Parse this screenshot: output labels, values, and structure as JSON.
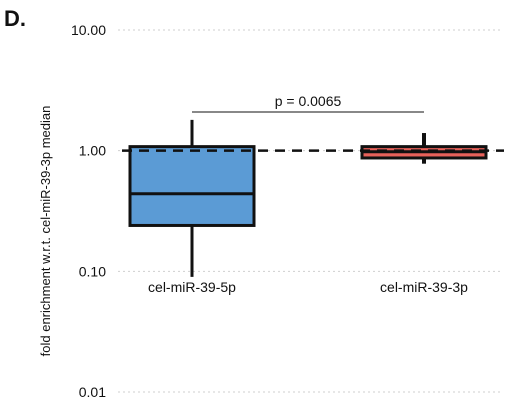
{
  "panel_label": "D.",
  "chart_data": {
    "type": "box",
    "ylabel": "fold enrichment w.r.t. cel-miR-39-3p median",
    "yscale": "log",
    "ylim": [
      0.01,
      10
    ],
    "yticks": [
      {
        "value": 10,
        "label": "10.00"
      },
      {
        "value": 1,
        "label": "1.00"
      },
      {
        "value": 0.1,
        "label": "0.10"
      },
      {
        "value": 0.01,
        "label": "0.01"
      }
    ],
    "grid": "dashed-horizontal",
    "reference_line": {
      "value": 1.0,
      "style": "dashed"
    },
    "categories": [
      "cel-miR-39-5p",
      "cel-miR-39-3p"
    ],
    "boxes": [
      {
        "name": "cel-miR-39-5p",
        "whisker_low": 0.09,
        "q1": 0.24,
        "median": 0.44,
        "q3": 1.08,
        "whisker_high": 1.8,
        "color": "#5b9bd5"
      },
      {
        "name": "cel-miR-39-3p",
        "whisker_low": 0.78,
        "q1": 0.87,
        "median": 0.98,
        "q3": 1.08,
        "whisker_high": 1.4,
        "color": "#e8615a"
      }
    ],
    "annotation": {
      "text": "p = 0.0065"
    }
  }
}
